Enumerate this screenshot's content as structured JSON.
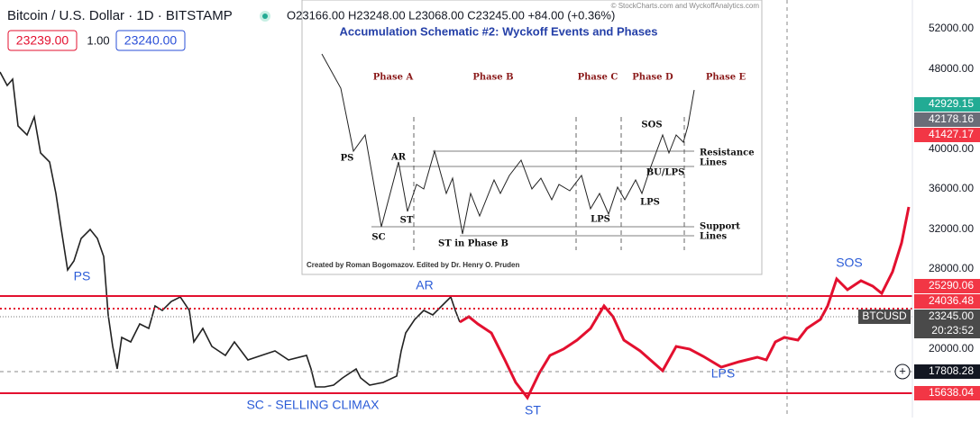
{
  "header": {
    "symbol": "Bitcoin / U.S. Dollar · 1D · BITSTAMP",
    "ohlc": "O23166.00 H23248.00 L23068.00 C23245.00 +84.00 (+0.36%)",
    "bid": "23239.00",
    "spread": "1.00",
    "ask": "23240.00"
  },
  "price_axis": {
    "labels": [
      "52000.00",
      "48000.00",
      "40000.00",
      "36000.00",
      "32000.00",
      "28000.00",
      "20000.00"
    ],
    "badges": [
      {
        "text": "42929.15",
        "color": "#22ab94"
      },
      {
        "text": "42178.16",
        "color": "#6a6d78"
      },
      {
        "text": "41427.17",
        "color": "#f23645"
      },
      {
        "text": "25290.06",
        "color": "#f23645"
      },
      {
        "text": "24036.48",
        "color": "#f23645"
      },
      {
        "text": "23245.00",
        "color": "#4a4a4a"
      },
      {
        "text": "20:23:52",
        "color": "#4a4a4a"
      },
      {
        "text": "17808.28",
        "color": "#131722"
      },
      {
        "text": "15638.04",
        "color": "#f23645"
      }
    ],
    "symbol_tag": "BTCUSD"
  },
  "annotations": [
    "PS",
    "AR",
    "SC - SELLING CLIMAX",
    "ST",
    "LPS",
    "SOS"
  ],
  "inset": {
    "copyright": "© StockCharts.com and WyckoffAnalytics.com",
    "title": "Accumulation Schematic #2: Wyckoff Events and Phases",
    "phases": [
      "Phase A",
      "Phase B",
      "Phase C",
      "Phase D",
      "Phase E"
    ],
    "events": [
      "PS",
      "AR",
      "ST",
      "SC",
      "ST in Phase B",
      "LPS",
      "LPS",
      "SOS",
      "BU/LPS"
    ],
    "resistance_label": [
      "Resistance",
      "Lines"
    ],
    "support_label": [
      "Support",
      "Lines"
    ],
    "credit": "Created by Roman Bogomazov. Edited by Dr. Henry O. Pruden"
  }
}
